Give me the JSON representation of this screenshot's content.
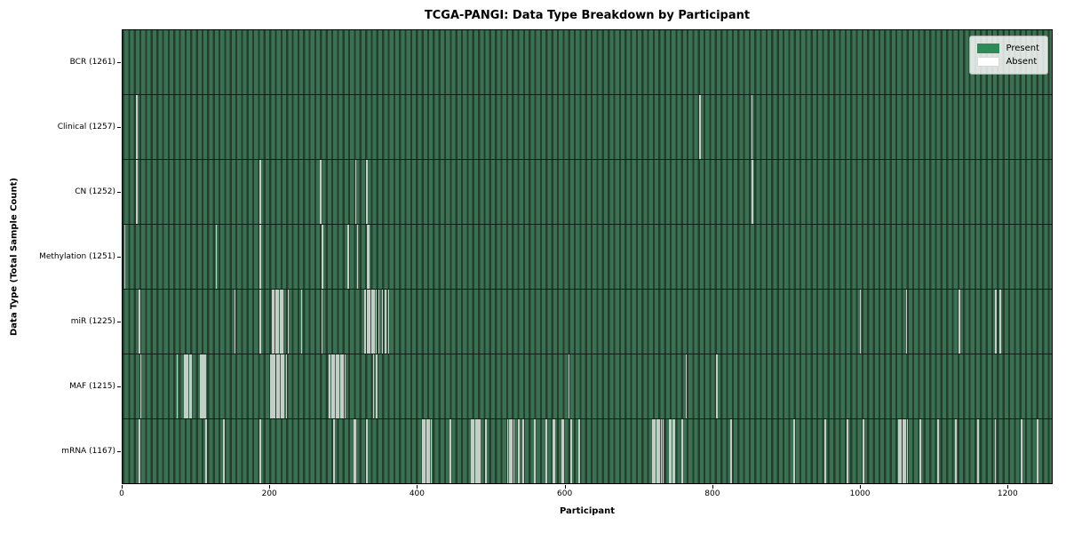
{
  "chart_data": {
    "type": "heatmap",
    "title": "TCGA-PANGI: Data Type Breakdown by Participant",
    "xlabel": "Participant",
    "ylabel": "Data Type (Total Sample Count)",
    "legend": {
      "present_label": "Present",
      "absent_label": "Absent",
      "position": "upper right"
    },
    "colors": {
      "present": "#2e8b57",
      "absent": "#ffffff",
      "stripe_light": "#3c7053",
      "stripe_dark": "#223f2d",
      "absent_line": "#c6ccc6"
    },
    "n_participants": 1261,
    "xlim": [
      0,
      1261
    ],
    "x_ticks": [
      0,
      200,
      400,
      600,
      800,
      1000,
      1200
    ],
    "grid": false,
    "rows": [
      {
        "name": "bcr",
        "label": "BCR (1261)",
        "count": 1261,
        "absent_indices": []
      },
      {
        "name": "clinical",
        "label": "Clinical (1257)",
        "count": 1257,
        "absent_indices": [
          18,
          19,
          783,
          853
        ]
      },
      {
        "name": "cn",
        "label": "CN (1252)",
        "count": 1252,
        "absent_indices": [
          18,
          19,
          186,
          268,
          316,
          330,
          331,
          853,
          854
        ]
      },
      {
        "name": "methylation",
        "label": "Methylation (1251)",
        "count": 1251,
        "absent_indices": [
          2,
          126,
          186,
          270,
          271,
          305,
          306,
          318,
          332,
          333
        ]
      },
      {
        "name": "mir",
        "label": "miR (1225)",
        "count": 1225,
        "absent_indices": [
          22,
          152,
          186,
          202,
          203,
          205,
          207,
          209,
          211,
          213,
          215,
          217,
          224,
          242,
          270,
          328,
          329,
          331,
          333,
          335,
          337,
          339,
          341,
          343,
          347,
          352,
          356,
          357,
          360,
          1000,
          1063,
          1135,
          1184,
          1185,
          1190,
          1191
        ]
      },
      {
        "name": "maf",
        "label": "MAF (1215)",
        "count": 1215,
        "absent_indices": [
          24,
          73,
          83,
          84,
          86,
          88,
          90,
          92,
          105,
          106,
          107,
          108,
          109,
          110,
          111,
          112,
          200,
          201,
          202,
          204,
          206,
          208,
          210,
          212,
          214,
          216,
          218,
          222,
          280,
          281,
          283,
          285,
          287,
          289,
          291,
          293,
          295,
          297,
          299,
          301,
          340,
          344,
          605,
          764,
          805,
          806
        ]
      },
      {
        "name": "mrna",
        "label": "mRNA (1167)",
        "count": 1167,
        "absent_indices": [
          22,
          23,
          112,
          113,
          136,
          137,
          186,
          187,
          286,
          287,
          314,
          315,
          330,
          331,
          406,
          408,
          410,
          412,
          414,
          416,
          418,
          444,
          445,
          472,
          474,
          476,
          478,
          480,
          482,
          484,
          492,
          493,
          522,
          524,
          526,
          528,
          530,
          536,
          537,
          542,
          543,
          558,
          559,
          574,
          575,
          584,
          585,
          596,
          597,
          607,
          608,
          618,
          619,
          718,
          720,
          722,
          724,
          726,
          728,
          730,
          733,
          742,
          744,
          746,
          748,
          758,
          759,
          824,
          825,
          910,
          911,
          952,
          953,
          982,
          983,
          1004,
          1005,
          1052,
          1054,
          1056,
          1058,
          1060,
          1062,
          1064,
          1081,
          1082,
          1105,
          1106,
          1129,
          1130,
          1160,
          1184,
          1219,
          1241
        ]
      }
    ]
  }
}
